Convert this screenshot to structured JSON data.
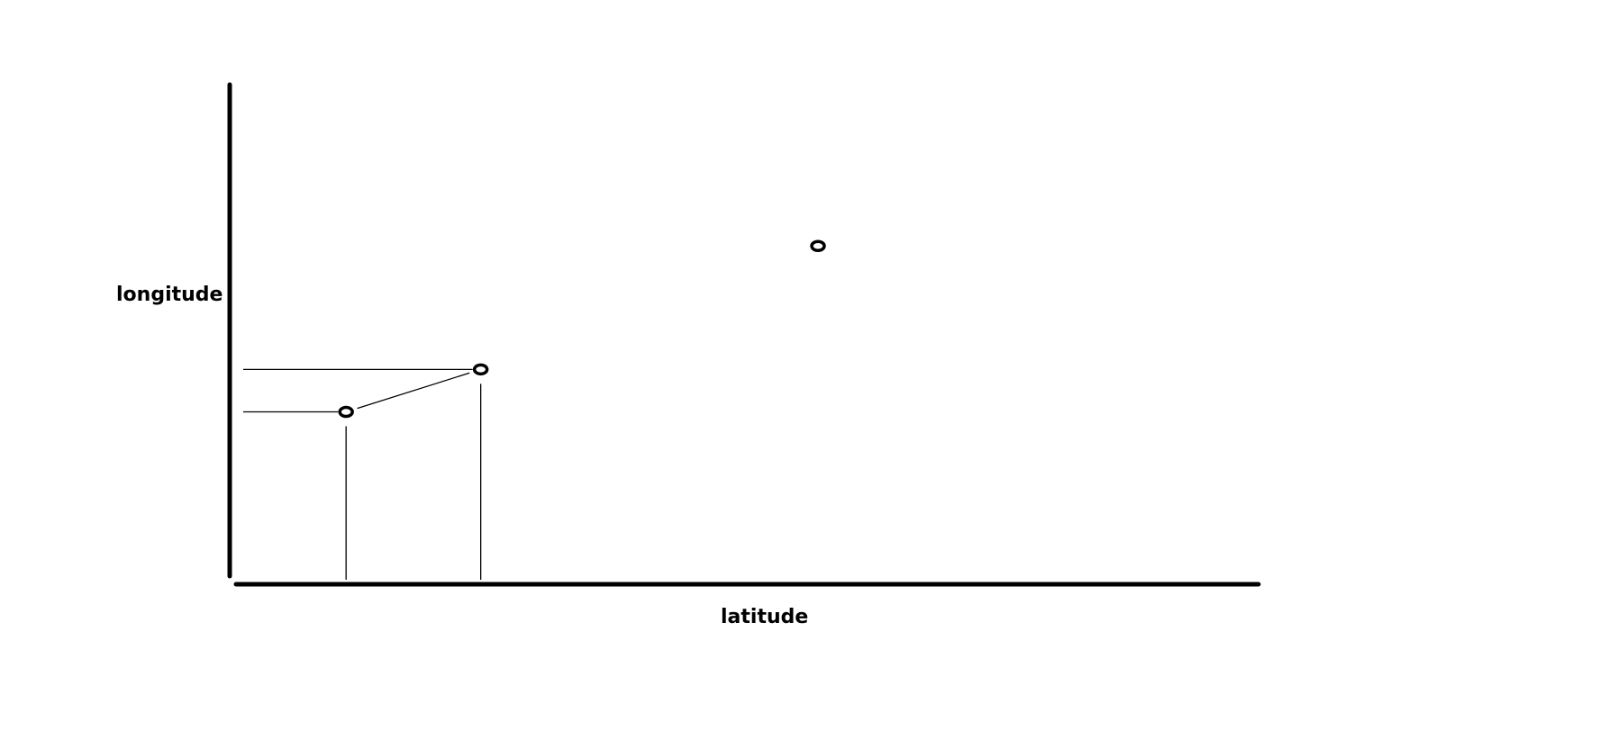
{
  "labels": {
    "y_axis": "longitude",
    "x_axis": "latitude"
  },
  "colors": {
    "ink": "#000000",
    "background": "#ffffff"
  },
  "chart_data": {
    "type": "scatter",
    "xlabel": "latitude",
    "ylabel": "longitude",
    "grid": false,
    "legend": "none",
    "xlim": [
      0,
      100
    ],
    "ylim": [
      0,
      100
    ],
    "points": [
      {
        "x": 27.5,
        "y": 34.5
      },
      {
        "x": 38.2,
        "y": 43.0
      },
      {
        "x": 65.0,
        "y": 67.7
      }
    ],
    "connections": [
      [
        0,
        1
      ]
    ],
    "projections": [
      0,
      1
    ]
  }
}
